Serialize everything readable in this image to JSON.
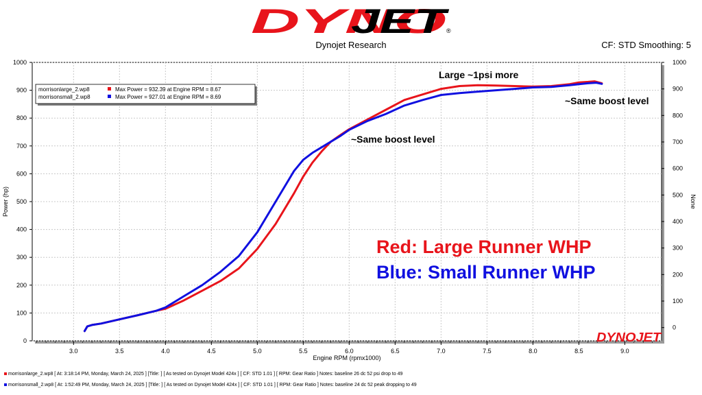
{
  "header": {
    "logo_text": "DYNOJET",
    "subtitle": "Dynojet Research",
    "cf_text": "CF: STD Smoothing: 5"
  },
  "colors": {
    "red": "#e8141b",
    "blue": "#1010e0",
    "grid": "#c8c8c8",
    "plot_bg": "#ffffff"
  },
  "legend": [
    {
      "file": "morrisonlarge_2.wp8",
      "text": "Max Power = 932.39 at Engine RPM = 8.67",
      "color": "#e8141b"
    },
    {
      "file": "morrisonsmall_2.wp8",
      "text": "Max Power = 927.01 at Engine RPM = 8.69",
      "color": "#1010e0"
    }
  ],
  "annotations": {
    "large_psi": "Large ~1psi more",
    "same_boost_top": "~Same boost level",
    "same_boost_mid": "~Same boost level",
    "red_label": "Red: Large Runner WHP",
    "blue_label": "Blue: Small Runner WHP"
  },
  "watermark": "DYNOJET",
  "footer": [
    {
      "color": "#e8141b",
      "text": "morrisonlarge_2.wp8 [ At:  3:18:14 PM, Monday, March 24, 2025 ] [Title: ]  [ As tested on Dynojet Model 424x ] [ CF: STD 1.01 ] [ RPM: Gear Ratio ] Notes: baseline 26 dc 52 psi drop to 49"
    },
    {
      "color": "#1010e0",
      "text": "morrisonsmall_2.wp8 [ At:  1:52:49 PM, Monday, March 24, 2025 ] [Title: ]  [ As tested on Dynojet Model 424x ] [ CF: STD 1.01 ] [ RPM: Gear Ratio ] Notes: baseline 24 dc 52 peak dropping to 49"
    }
  ],
  "chart_data": {
    "type": "line",
    "xlabel": "Engine RPM (rpmx1000)",
    "ylabel": "Power (hp)",
    "y2label": "None",
    "xlim": [
      2.55,
      9.4
    ],
    "ylim": [
      0,
      1000
    ],
    "y2lim": [
      -50,
      1000
    ],
    "xticks": [
      3.0,
      3.5,
      4.0,
      4.5,
      5.0,
      5.5,
      6.0,
      6.5,
      7.0,
      7.5,
      8.0,
      8.5,
      9.0
    ],
    "xtick_labels": [
      "3.0",
      "3.5",
      "4.0",
      "4.5",
      "5.0",
      "5.5",
      "6.0",
      "6.5",
      "7.0",
      "7.5",
      "8.0",
      "8.5",
      "9.0"
    ],
    "yticks": [
      0,
      100,
      200,
      300,
      400,
      500,
      600,
      700,
      800,
      900,
      1000
    ],
    "y2ticks": [
      0,
      100,
      200,
      300,
      400,
      500,
      600,
      700,
      800,
      900,
      1000
    ],
    "grid": true,
    "legend_position": "top-left",
    "series": [
      {
        "name": "morrisonlarge_2.wp8",
        "color": "#e8141b",
        "x": [
          3.12,
          3.15,
          3.2,
          3.3,
          3.5,
          3.7,
          3.9,
          4.0,
          4.2,
          4.4,
          4.6,
          4.8,
          5.0,
          5.2,
          5.4,
          5.5,
          5.6,
          5.7,
          5.8,
          5.9,
          6.0,
          6.2,
          6.4,
          6.6,
          6.8,
          7.0,
          7.2,
          7.4,
          7.6,
          7.8,
          8.0,
          8.2,
          8.4,
          8.5,
          8.6,
          8.67,
          8.75
        ],
        "y": [
          35,
          52,
          57,
          62,
          77,
          92,
          108,
          115,
          145,
          180,
          215,
          260,
          330,
          420,
          530,
          590,
          640,
          680,
          715,
          738,
          760,
          795,
          830,
          865,
          885,
          905,
          915,
          918,
          917,
          915,
          913,
          915,
          922,
          928,
          930,
          932,
          925
        ]
      },
      {
        "name": "morrisonsmall_2.wp8",
        "color": "#1010e0",
        "x": [
          3.12,
          3.15,
          3.2,
          3.3,
          3.5,
          3.7,
          3.9,
          4.0,
          4.2,
          4.4,
          4.6,
          4.8,
          5.0,
          5.2,
          5.4,
          5.5,
          5.6,
          5.7,
          5.8,
          5.9,
          6.0,
          6.2,
          6.4,
          6.6,
          6.8,
          7.0,
          7.2,
          7.4,
          7.6,
          7.8,
          8.0,
          8.2,
          8.4,
          8.5,
          8.6,
          8.69,
          8.75
        ],
        "y": [
          35,
          52,
          57,
          62,
          77,
          92,
          108,
          120,
          160,
          200,
          248,
          305,
          390,
          500,
          610,
          650,
          675,
          695,
          715,
          735,
          758,
          790,
          815,
          845,
          865,
          883,
          890,
          895,
          900,
          905,
          910,
          912,
          918,
          922,
          925,
          927,
          923
        ]
      }
    ]
  }
}
